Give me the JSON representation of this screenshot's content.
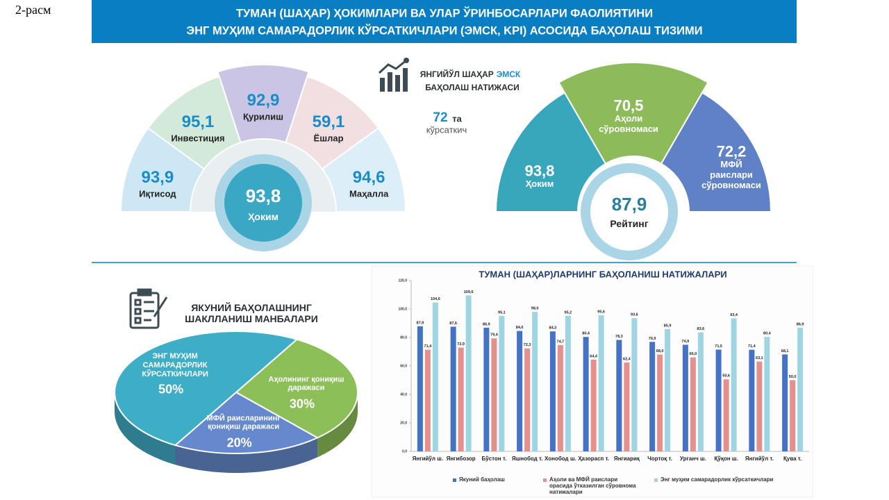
{
  "figure_label": "2-расм",
  "header": {
    "lines": [
      "ТУМАН (ШАҲАР) ҲОКИМЛАРИ ВА УЛАР ЎРИНБОСАРЛАРИ ФАОЛИЯТИНИ",
      "ЭНГ МУҲИМ САМАРАДОРЛИК КЎРСАТКИЧЛАРИ (ЭМСК, KPI) АСОСИДА БАҲОЛАШ ТИЗИМИ"
    ]
  },
  "hokim_panel": {
    "center": {
      "value": "93,8",
      "label": "Ҳоким"
    },
    "sectors": [
      {
        "value": "93,9",
        "label": "Иқтисод"
      },
      {
        "value": "95,1",
        "label": "Инвестиция"
      },
      {
        "value": "92,9",
        "label": "Қурилиш"
      },
      {
        "value": "59,1",
        "label": "Ёшлар"
      },
      {
        "value": "94,6",
        "label": "Маҳалла"
      }
    ]
  },
  "summary": {
    "title_start": "ЯНГИЙЎЛ ШАҲАР",
    "title_highlight": "ЭМСК",
    "title_end": "БАҲОЛАШ НАТИЖАСИ",
    "count": "72",
    "count_unit": "та",
    "count_label": "кўрсаткич"
  },
  "rating_panel": {
    "center": {
      "value": "87,9",
      "label": "Рейтинг"
    },
    "sectors": [
      {
        "value": "93,8",
        "label": "Ҳоким"
      },
      {
        "value": "70,5",
        "label": "Аҳоли сўровномаси"
      },
      {
        "value": "72,2",
        "label": "МФЙ раислари сўровномаси"
      }
    ]
  },
  "chart_data": [
    {
      "type": "pie",
      "title": "ЯКУНИЙ БАҲОЛАШНИНГ ШАКЛЛАНИШ МАНБАЛАРИ",
      "categories": [
        "ЭНГ МУҲИМ САМАРАДОРЛИК КЎРСАТКИЧЛАРИ",
        "Аҳолининг қониқиш даражаси",
        "МФЙ раисларининг қониқиш даражаси"
      ],
      "values": [
        50,
        30,
        20
      ],
      "value_labels": [
        "50%",
        "30%",
        "20%"
      ],
      "colors": [
        "#3eadc6",
        "#8dbf58",
        "#6589cc"
      ]
    },
    {
      "type": "bar",
      "title": "ТУМАН (ШАҲАР)ЛАРНИНГ БАҲОЛАНИШ НАТИЖАЛАРИ",
      "categories": [
        "Янгийўл ш.",
        "Янгибозор",
        "Бўстон т.",
        "Яшнобод т.",
        "Хонобод ш.",
        "Ҳазорасп т.",
        "Янгиариқ",
        "Чортоқ т.",
        "Урганч ш.",
        "Қўқон ш.",
        "Янгийўл т.",
        "Қува т."
      ],
      "series": [
        {
          "name": "Якуний баҳолаш",
          "color": "#4472c4",
          "values": [
            87.9,
            87.6,
            86.9,
            84.6,
            84.3,
            80.4,
            78.3,
            76.9,
            74.9,
            71.5,
            71.4,
            68.1
          ],
          "value_labels": [
            "87,9",
            "87,6",
            "86,9",
            "84,6",
            "84,3",
            "80,4",
            "78,3",
            "76,9",
            "74,9",
            "71,5",
            "71,4",
            "68,1"
          ]
        },
        {
          "name": "Аҳоли ва МФЙ раислари орасида ўтказилган сўровнома натижалари",
          "color": "#e6908d",
          "values": [
            71.4,
            72.9,
            79.4,
            72.3,
            74.7,
            64.4,
            62.4,
            68.0,
            66.0,
            50.6,
            63.1,
            50.0
          ],
          "value_labels": [
            "71,4",
            "72,9",
            "79,4",
            "72,3",
            "74,7",
            "64,4",
            "62,4",
            "68,0",
            "66,0",
            "50,6",
            "63,1",
            "50,0"
          ]
        },
        {
          "name": "Энг муҳим самарадорлик кўрсаткичлари",
          "color": "#9fd4e2",
          "values": [
            104.6,
            109.6,
            95.1,
            98.0,
            95.2,
            95.6,
            93.6,
            85.9,
            83.6,
            93.4,
            80.4,
            86.9
          ],
          "value_labels": [
            "104,6",
            "109,6",
            "95,1",
            "98,0",
            "95,2",
            "95,6",
            "93,6",
            "85,9",
            "83,6",
            "93,4",
            "80,4",
            "86,9"
          ]
        }
      ],
      "ylim": [
        0,
        120
      ],
      "yticks": [
        {
          "value": 0,
          "label": "0,0"
        },
        {
          "value": 20,
          "label": "20,0"
        },
        {
          "value": 40,
          "label": "40,0"
        },
        {
          "value": 60,
          "label": "60,0"
        },
        {
          "value": 80,
          "label": "80,0"
        },
        {
          "value": 100,
          "label": "100,0"
        },
        {
          "value": 120,
          "label": "120,0"
        }
      ],
      "legend": "bottom"
    }
  ]
}
